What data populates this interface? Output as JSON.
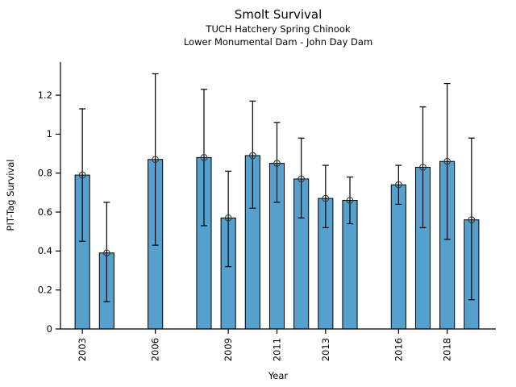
{
  "figure": {
    "title": "Smolt Survival",
    "subtitle_line1": "TUCH Hatchery Spring Chinook",
    "subtitle_line2": "Lower Monumental Dam - John Day Dam",
    "xlabel": "Year",
    "ylabel": "PIT-Tag Survival"
  },
  "chart_data": {
    "type": "bar",
    "title": "Smolt Survival",
    "subtitle": [
      "TUCH Hatchery Spring Chinook",
      "Lower Monumental Dam - John Day Dam"
    ],
    "xlabel": "Year",
    "ylabel": "PIT-Tag Survival",
    "xlim": [
      2002.1,
      2020.0
    ],
    "ylim": [
      0,
      1.37
    ],
    "x_tick_values": [
      2003,
      2006,
      2009,
      2011,
      2013,
      2016,
      2018
    ],
    "x_tick_labels": [
      "2003",
      "2006",
      "2009",
      "2011",
      "2013",
      "2016",
      "2018"
    ],
    "y_tick_values": [
      0,
      0.2,
      0.4,
      0.6,
      0.8,
      1.0,
      1.2
    ],
    "y_tick_labels": [
      "0",
      "0.2",
      "0.4",
      "0.6",
      "0.8",
      "1",
      "1.2"
    ],
    "x_tick_rotation_deg": 90,
    "grid": false,
    "legend": "none",
    "bar_width_years": 0.6,
    "colors": {
      "bar_fill": "#56a0ce",
      "bar_edge": "#000000",
      "error_line": "#000000",
      "marker_edge": "#3a3a3a",
      "spine": "#000000",
      "text": "#000000",
      "background": "#ffffff"
    },
    "marker": "open-circle",
    "series": [
      {
        "name": "PIT-Tag Survival",
        "x": [
          2003,
          2004,
          2006,
          2008,
          2009,
          2010,
          2011,
          2012,
          2013,
          2014,
          2016,
          2017,
          2018,
          2019
        ],
        "values": [
          0.79,
          0.39,
          0.87,
          0.88,
          0.57,
          0.89,
          0.85,
          0.77,
          0.67,
          0.66,
          0.74,
          0.83,
          0.86,
          0.56
        ],
        "err_low": [
          0.45,
          0.14,
          0.43,
          0.53,
          0.32,
          0.62,
          0.65,
          0.57,
          0.52,
          0.54,
          0.64,
          0.52,
          0.46,
          0.15
        ],
        "err_high": [
          1.13,
          0.65,
          1.31,
          1.23,
          0.81,
          1.17,
          1.06,
          0.98,
          0.84,
          0.78,
          0.84,
          1.14,
          1.26,
          0.98
        ]
      }
    ]
  }
}
